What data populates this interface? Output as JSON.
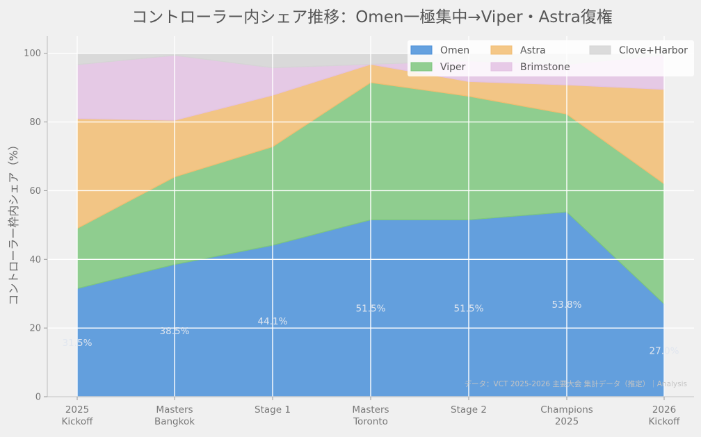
{
  "chart_data": {
    "type": "area",
    "stacked": true,
    "title": "コントローラー内シェア推移：Omen一極集中→Viper・Astra復権",
    "xlabel": "",
    "ylabel": "コントローラー枠内シェア（%）",
    "ylim": [
      0,
      105
    ],
    "yticks": [
      0,
      20,
      40,
      60,
      80,
      100
    ],
    "grid": true,
    "legend_position": "top-right",
    "categories": [
      [
        "2025",
        "Kickoff"
      ],
      [
        "Masters",
        "Bangkok"
      ],
      [
        "Stage 1"
      ],
      [
        "Masters",
        "Toronto"
      ],
      [
        "Stage 2"
      ],
      [
        "Champions",
        "2025"
      ],
      [
        "2026",
        "Kickoff"
      ]
    ],
    "series": [
      {
        "name": "Omen",
        "color": "#4a90d9",
        "values": [
          31.5,
          38.5,
          44.1,
          51.5,
          51.5,
          53.8,
          27.0
        ]
      },
      {
        "name": "Viper",
        "color": "#7ec77e",
        "values": [
          17.5,
          25.5,
          28.7,
          40.0,
          36.0,
          28.5,
          35.0
        ]
      },
      {
        "name": "Astra",
        "color": "#f2bd72",
        "values": [
          32.0,
          16.5,
          15.0,
          5.3,
          4.3,
          8.5,
          27.5
        ]
      },
      {
        "name": "Brimstone",
        "color": "#e3c2e3",
        "values": [
          15.7,
          18.9,
          8.0,
          0.0,
          6.0,
          6.0,
          10.0
        ]
      },
      {
        "name": "Clove+Harbor",
        "color": "#d5d5d5",
        "values": [
          3.3,
          0.6,
          4.2,
          3.2,
          2.2,
          3.2,
          0.5
        ]
      }
    ],
    "data_labels": [
      "31.5%",
      "38.5%",
      "44.1%",
      "51.5%",
      "51.5%",
      "53.8%",
      "27.0%"
    ],
    "source_note": "データ：VCT 2025-2026 主要大会 集計データ（推定）｜Analysis"
  }
}
